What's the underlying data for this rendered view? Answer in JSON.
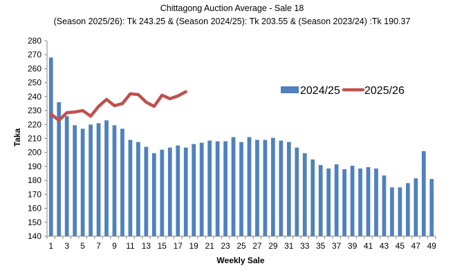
{
  "chart_data": {
    "type": "bar",
    "title": "Chittagong Auction Average - Sale 18",
    "subtitle": "(Season 2025/26): Tk 243.25 & (Season 2024/25): Tk 203.55 & (Season 2023/24) :Tk 190.37",
    "xlabel": "Weekly Sale",
    "ylabel": "Taka",
    "ylim": [
      140,
      280
    ],
    "yticks": [
      140,
      150,
      160,
      170,
      180,
      190,
      200,
      210,
      220,
      230,
      240,
      250,
      260,
      270,
      280
    ],
    "xlim": [
      1,
      49
    ],
    "xticks": [
      1,
      3,
      5,
      7,
      9,
      11,
      13,
      15,
      17,
      19,
      21,
      23,
      25,
      27,
      29,
      31,
      33,
      35,
      37,
      39,
      41,
      43,
      45,
      47,
      49
    ],
    "grid": false,
    "legend_position": "right",
    "series": [
      {
        "name": "2024/25",
        "kind": "bar",
        "color": "#4F81BD",
        "x": [
          1,
          2,
          3,
          4,
          5,
          6,
          7,
          8,
          9,
          10,
          11,
          12,
          13,
          14,
          15,
          16,
          17,
          18,
          19,
          20,
          21,
          22,
          23,
          24,
          25,
          26,
          27,
          28,
          29,
          30,
          31,
          32,
          33,
          34,
          35,
          36,
          37,
          38,
          39,
          40,
          41,
          42,
          43,
          44,
          45,
          46,
          47,
          48,
          49
        ],
        "values": [
          268,
          236,
          226,
          219.5,
          217,
          220,
          221,
          223,
          219.5,
          217,
          209,
          207.5,
          204,
          199.5,
          202,
          203.5,
          205,
          203.5,
          206,
          207,
          208.5,
          208,
          208,
          211,
          207.5,
          211,
          209,
          209,
          210.5,
          208.5,
          207.5,
          203.5,
          199.5,
          195,
          191,
          188.5,
          191.5,
          188,
          190.5,
          188.5,
          189.5,
          188.5,
          183.5,
          175,
          175,
          178,
          181.5,
          201,
          181
        ]
      },
      {
        "name": "2025/26",
        "kind": "line",
        "color": "#C0504D",
        "x": [
          1,
          2,
          3,
          4,
          5,
          6,
          7,
          8,
          9,
          10,
          11,
          12,
          13,
          14,
          15,
          16,
          17,
          18
        ],
        "values": [
          227.5,
          223,
          228.5,
          229,
          230,
          226,
          233,
          238,
          233.5,
          235,
          242,
          241.5,
          236,
          233,
          241,
          238.5,
          240.5,
          243.5
        ]
      }
    ]
  }
}
